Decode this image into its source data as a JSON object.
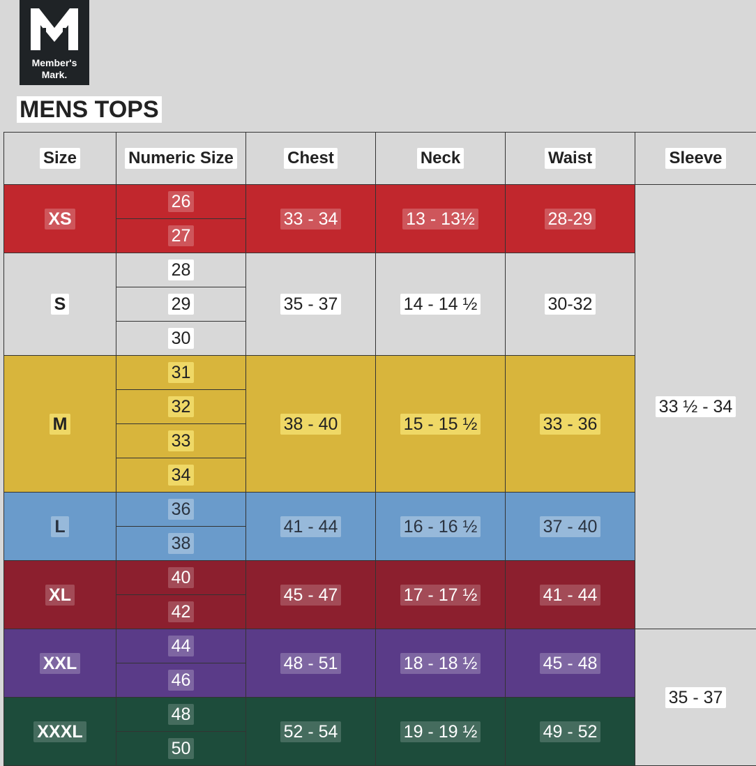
{
  "header": {
    "brand": [
      "Member's",
      "Mark."
    ],
    "title": "MENS TOPS"
  },
  "table": {
    "columns": [
      "Size",
      "Numeric Size",
      "Chest",
      "Neck",
      "Waist",
      "Sleeve"
    ],
    "rows": [
      {
        "size": "XS",
        "numeric": [
          "26",
          "27"
        ],
        "chest": "33 - 34",
        "neck": "13 - 13½",
        "waist": "28-29"
      },
      {
        "size": "S",
        "numeric": [
          "28",
          "29",
          "30"
        ],
        "chest": "35 - 37",
        "neck": "14 - 14 ½",
        "waist": "30-32"
      },
      {
        "size": "M",
        "numeric": [
          "31",
          "32",
          "33",
          "34"
        ],
        "chest": "38 - 40",
        "neck": "15 - 15 ½",
        "waist": "33 - 36"
      },
      {
        "size": "L",
        "numeric": [
          "36",
          "38"
        ],
        "chest": "41 - 44",
        "neck": "16 - 16 ½",
        "waist": "37 - 40"
      },
      {
        "size": "XL",
        "numeric": [
          "40",
          "42"
        ],
        "chest": "45 - 47",
        "neck": "17 - 17 ½",
        "waist": "41 - 44"
      },
      {
        "size": "XXL",
        "numeric": [
          "44",
          "46"
        ],
        "chest": "48 - 51",
        "neck": "18 - 18 ½",
        "waist": "45 - 48"
      },
      {
        "size": "XXXL",
        "numeric": [
          "48",
          "50"
        ],
        "chest": "52 - 54",
        "neck": "19 - 19 ½",
        "waist": "49 - 52"
      }
    ],
    "sleeve": [
      {
        "label": "33 ½ - 34",
        "rows": "XS-XL"
      },
      {
        "label": "35 - 37",
        "rows": "XXL-XXXL"
      }
    ]
  }
}
